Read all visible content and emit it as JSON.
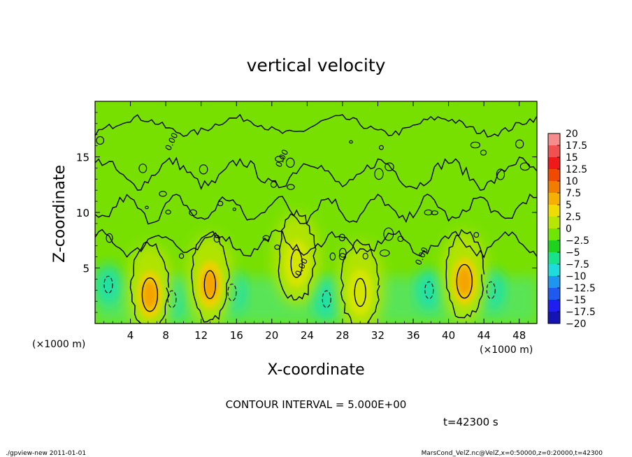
{
  "chart_data": {
    "type": "heatmap",
    "title": "vertical velocity",
    "xlabel": "X-coordinate",
    "ylabel": "Z-coordinate",
    "x_unit": "(×1000 m)",
    "y_unit": "(×1000 m)",
    "xlim": [
      0,
      50
    ],
    "ylim": [
      0,
      20
    ],
    "x_ticks": [
      "4",
      "8",
      "12",
      "16",
      "20",
      "24",
      "28",
      "32",
      "36",
      "40",
      "44",
      "48"
    ],
    "y_ticks": [
      "5",
      "10",
      "15"
    ],
    "contour_interval_text": "CONTOUR INTERVAL = 5.000E+00",
    "time_text": "t=42300 s",
    "contour_labels": [
      "0.00",
      "0.00",
      "0.00",
      "0.00"
    ],
    "colorbar": {
      "labels": [
        "20",
        "17.5",
        "15",
        "12.5",
        "10",
        "7.5",
        "5",
        "2.5",
        "0",
        "−2.5",
        "−5",
        "−7.5",
        "−10",
        "−12.5",
        "−15",
        "−17.5",
        "−20"
      ],
      "colors": [
        "#f78c8c",
        "#f25050",
        "#f01818",
        "#f04a00",
        "#f07c00",
        "#f5b000",
        "#f0dc00",
        "#b8e600",
        "#6ee600",
        "#1ed21e",
        "#17e38c",
        "#1edcdc",
        "#1e96f0",
        "#1e5af0",
        "#1e1ef0",
        "#1414b4",
        "#7814c8"
      ]
    },
    "updrafts": [
      {
        "x": 6.2,
        "z": 2.6,
        "w": 12
      },
      {
        "x": 13.0,
        "z": 3.5,
        "w": 9
      },
      {
        "x": 22.8,
        "z": 5.4,
        "w": 6
      },
      {
        "x": 30.0,
        "z": 2.8,
        "w": 5
      },
      {
        "x": 41.8,
        "z": 3.8,
        "w": 10
      }
    ],
    "downdrafts": [
      {
        "x": 1.5,
        "z": 3.5,
        "w": -5
      },
      {
        "x": 8.7,
        "z": 2.2,
        "w": -6
      },
      {
        "x": 15.5,
        "z": 2.8,
        "w": -5
      },
      {
        "x": 26.2,
        "z": 2.2,
        "w": -7
      },
      {
        "x": 37.8,
        "z": 3.0,
        "w": -5
      },
      {
        "x": 44.8,
        "z": 3.0,
        "w": -5
      }
    ]
  },
  "footer": {
    "left": "./gpview-new  2011-01-01",
    "right": "MarsCond_VelZ.nc@VelZ,x=0:50000,z=0:20000,t=42300"
  }
}
